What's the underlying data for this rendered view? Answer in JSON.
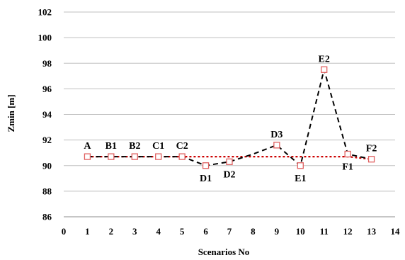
{
  "chart_data": {
    "type": "line",
    "title": "",
    "xlabel": "Scenarios No",
    "ylabel": "Zmin [m]",
    "xlim": [
      0,
      14
    ],
    "ylim": [
      86,
      102
    ],
    "xticks": [
      "0",
      "1",
      "2",
      "3",
      "4",
      "5",
      "6",
      "7",
      "8",
      "9",
      "10",
      "11",
      "12",
      "13",
      "14"
    ],
    "yticks": [
      "86",
      "88",
      "90",
      "92",
      "94",
      "96",
      "98",
      "100",
      "102"
    ],
    "grid": "horizontal",
    "legend": "none",
    "series": [
      {
        "style": "black dashed line",
        "color": "#000000",
        "x": [
          1,
          2,
          3,
          4,
          5,
          6,
          7,
          8,
          9,
          10,
          11,
          12,
          13
        ],
        "y": [
          90.7,
          90.7,
          90.7,
          90.7,
          90.7,
          90.0,
          90.3,
          90.9,
          91.6,
          90.0,
          97.5,
          90.9,
          90.5
        ]
      },
      {
        "style": "red dotted line with square markers",
        "color": "#cc0000",
        "x": [
          1,
          2,
          3,
          4,
          5,
          6,
          7,
          8,
          9,
          10,
          11,
          12,
          13
        ],
        "y": [
          90.7,
          90.7,
          90.7,
          90.7,
          90.7,
          90.7,
          90.7,
          90.7,
          90.7,
          90.7,
          90.7,
          90.7,
          90.5
        ],
        "markers_x": [
          1,
          2,
          3,
          4,
          5,
          6,
          7,
          9,
          10,
          11,
          12,
          13
        ],
        "markers_y": [
          90.7,
          90.7,
          90.7,
          90.7,
          90.7,
          90.0,
          90.3,
          91.6,
          90.0,
          97.5,
          90.9,
          90.5
        ]
      }
    ],
    "annotations": [
      {
        "text": "A",
        "x": 1,
        "y": 90.7,
        "pos": "above"
      },
      {
        "text": "B1",
        "x": 2,
        "y": 90.7,
        "pos": "above"
      },
      {
        "text": "B2",
        "x": 3,
        "y": 90.7,
        "pos": "above"
      },
      {
        "text": "C1",
        "x": 4,
        "y": 90.7,
        "pos": "above"
      },
      {
        "text": "C2",
        "x": 5,
        "y": 90.7,
        "pos": "above"
      },
      {
        "text": "D1",
        "x": 6,
        "y": 90.0,
        "pos": "below"
      },
      {
        "text": "D2",
        "x": 7,
        "y": 90.3,
        "pos": "below"
      },
      {
        "text": "D3",
        "x": 9,
        "y": 91.6,
        "pos": "above"
      },
      {
        "text": "E1",
        "x": 10,
        "y": 90.0,
        "pos": "below"
      },
      {
        "text": "E2",
        "x": 11,
        "y": 97.5,
        "pos": "above"
      },
      {
        "text": "F1",
        "x": 12,
        "y": 90.9,
        "pos": "below"
      },
      {
        "text": "F2",
        "x": 13,
        "y": 90.5,
        "pos": "above"
      }
    ]
  }
}
